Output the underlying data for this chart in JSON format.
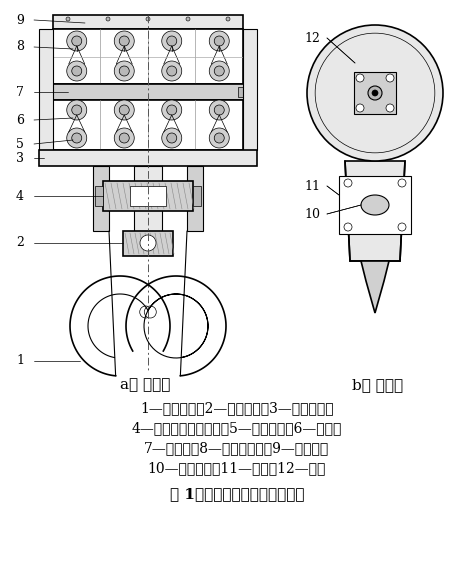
{
  "bg_color": "#ffffff",
  "fig_width": 4.74,
  "fig_height": 5.82,
  "dpi": 100,
  "label_a": "a） 主视图",
  "label_b": "b） 左视图",
  "caption_line1": "1—直柄双钓：2—保险卡板：3—吸钓横梁：",
  "caption_line2": "4—推力调心滚子轴承：5—吸钓螺母：6—滑轮：",
  "caption_line3": "7—滑轮轴：8—深沟球轴承：9—滑轮罩：",
  "caption_line4": "10—轴端挡板：11—拉板：12—油杯",
  "fig_label": "图 1　起重吸钓的基本结构形式"
}
